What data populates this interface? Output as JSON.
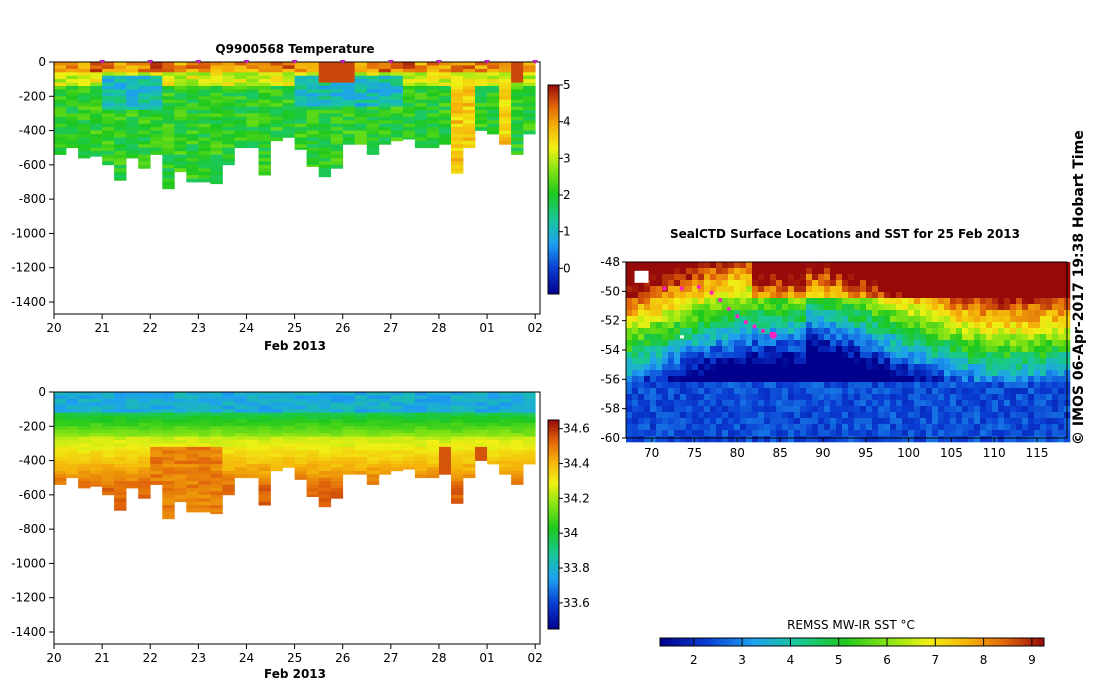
{
  "side_caption": "© IMOS 06-Apr-2017 19:38 Hobart Time",
  "chart_data": [
    {
      "type": "heatmap",
      "id": "temperature",
      "title": "Q9900568  Temperature",
      "xlabel": "Feb 2013",
      "ylabel": "",
      "x_ticks": [
        "20",
        "21",
        "22",
        "23",
        "24",
        "25",
        "26",
        "27",
        "28",
        "01",
        "02"
      ],
      "x_range": [
        0,
        10.1
      ],
      "y_ticks": [
        0,
        -200,
        -400,
        -600,
        -800,
        -1000,
        -1200,
        -1400
      ],
      "y_range": [
        -1470,
        0
      ],
      "colorbar_ticks": [
        0,
        1,
        2,
        3,
        4,
        5
      ],
      "colorbar_range": [
        -0.7,
        5
      ],
      "profile_days": [
        0.0,
        0.25,
        0.5,
        0.75,
        1.0,
        1.25,
        1.5,
        1.75,
        2.0,
        2.25,
        2.5,
        2.75,
        3.0,
        3.25,
        3.5,
        3.75,
        4.0,
        4.25,
        4.5,
        4.75,
        5.0,
        5.25,
        5.5,
        5.75,
        6.0,
        6.25,
        6.5,
        6.75,
        7.0,
        7.25,
        7.5,
        7.75,
        8.0,
        8.25,
        8.5,
        8.75,
        9.0,
        9.25,
        9.5,
        9.75
      ],
      "profile_max_depths": [
        540,
        500,
        560,
        550,
        600,
        690,
        560,
        620,
        540,
        740,
        640,
        700,
        700,
        710,
        600,
        500,
        500,
        660,
        460,
        440,
        510,
        610,
        670,
        620,
        480,
        480,
        540,
        480,
        460,
        450,
        500,
        500,
        480,
        650,
        500,
        400,
        420,
        480,
        540,
        420
      ],
      "triangle_markers_days": [
        1,
        2,
        3,
        4,
        5,
        6,
        7,
        8,
        9,
        10
      ]
    },
    {
      "type": "heatmap",
      "id": "salinity",
      "title": "",
      "xlabel": "Feb 2013",
      "ylabel": "",
      "x_ticks": [
        "20",
        "21",
        "22",
        "23",
        "24",
        "25",
        "26",
        "27",
        "28",
        "01",
        "02"
      ],
      "x_range": [
        0,
        10.1
      ],
      "y_ticks": [
        0,
        -200,
        -400,
        -600,
        -800,
        -1000,
        -1200,
        -1400
      ],
      "y_range": [
        -1470,
        0
      ],
      "colorbar_ticks": [
        33.6,
        33.8,
        34,
        34.2,
        34.4,
        34.6
      ],
      "colorbar_range": [
        33.45,
        34.65
      ],
      "profile_days": [
        0.0,
        0.25,
        0.5,
        0.75,
        1.0,
        1.25,
        1.5,
        1.75,
        2.0,
        2.25,
        2.5,
        2.75,
        3.0,
        3.25,
        3.5,
        3.75,
        4.0,
        4.25,
        4.5,
        4.75,
        5.0,
        5.25,
        5.5,
        5.75,
        6.0,
        6.25,
        6.5,
        6.75,
        7.0,
        7.25,
        7.5,
        7.75,
        8.0,
        8.25,
        8.5,
        8.75,
        9.0,
        9.25,
        9.5,
        9.75
      ],
      "profile_max_depths": [
        540,
        500,
        560,
        550,
        600,
        690,
        560,
        620,
        540,
        740,
        640,
        700,
        700,
        710,
        600,
        500,
        500,
        660,
        460,
        440,
        510,
        610,
        670,
        620,
        480,
        480,
        540,
        480,
        460,
        450,
        500,
        500,
        480,
        650,
        500,
        400,
        420,
        480,
        540,
        420
      ]
    },
    {
      "type": "heatmap",
      "id": "sst_map",
      "title": "SealCTD Surface Locations and SST for 25 Feb 2013",
      "xlabel": "",
      "ylabel": "",
      "x_ticks": [
        70,
        75,
        80,
        85,
        90,
        95,
        100,
        105,
        110,
        115
      ],
      "x_range": [
        67,
        118.5
      ],
      "y_ticks": [
        -48,
        -50,
        -52,
        -54,
        -56,
        -58,
        -60
      ],
      "y_range": [
        -60,
        -48
      ],
      "colorbar_title": "REMSS MW-IR SST °C",
      "colorbar_ticks": [
        2,
        3,
        4,
        5,
        6,
        7,
        8,
        9
      ],
      "colorbar_range": [
        1.3,
        9.25
      ],
      "track_points": [
        {
          "lon": 71.5,
          "lat": -49.8
        },
        {
          "lon": 73.5,
          "lat": -49.8
        },
        {
          "lon": 75.5,
          "lat": -49.7
        },
        {
          "lon": 77.0,
          "lat": -50.1
        },
        {
          "lon": 78.0,
          "lat": -50.6
        },
        {
          "lon": 79.0,
          "lat": -51.2
        },
        {
          "lon": 80.0,
          "lat": -51.7
        },
        {
          "lon": 81.0,
          "lat": -52.1
        },
        {
          "lon": 82.0,
          "lat": -52.4
        },
        {
          "lon": 83.0,
          "lat": -52.7
        },
        {
          "lon": 84.0,
          "lat": -52.9
        }
      ],
      "latest_point": {
        "lon": 84.2,
        "lat": -53.0
      }
    }
  ]
}
